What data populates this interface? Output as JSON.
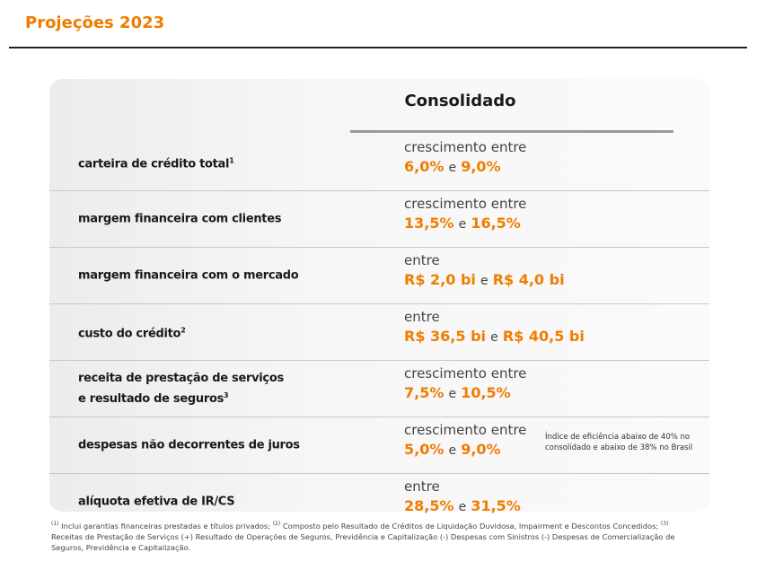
{
  "header": {
    "title": "Projeções 2023"
  },
  "table": {
    "column_header": "Consolidado",
    "rows": [
      {
        "label_lines": [
          "carteira de crédito total"
        ],
        "sup": "1",
        "prefix": "crescimento entre",
        "low": "6,0%",
        "connector": "e",
        "high": "9,0%"
      },
      {
        "label_lines": [
          "margem financeira com clientes"
        ],
        "prefix": "crescimento entre",
        "low": "13,5%",
        "connector": "e",
        "high": "16,5%"
      },
      {
        "label_lines": [
          "margem financeira com o mercado"
        ],
        "prefix": "entre",
        "low": "R$ 2,0 bi",
        "connector": "e",
        "high": "R$ 4,0 bi"
      },
      {
        "label_lines": [
          "custo do crédito"
        ],
        "sup": "2",
        "prefix": "entre",
        "low": "R$ 36,5 bi",
        "connector": "e",
        "high": "R$ 40,5 bi"
      },
      {
        "label_lines": [
          "receita de prestação de serviços",
          "e resultado de seguros"
        ],
        "sup": "3",
        "prefix": "crescimento entre",
        "low": "7,5%",
        "connector": "e",
        "high": "10,5%"
      },
      {
        "label_lines": [
          "despesas não decorrentes de juros"
        ],
        "prefix": "crescimento entre",
        "low": "5,0%",
        "connector": "e",
        "high": "9,0%",
        "note": "Índice de eficiência abaixo de 40% no consolidado e abaixo de 38% no Brasil"
      },
      {
        "label_lines": [
          "alíquota efetiva de IR/CS"
        ],
        "prefix": "entre",
        "low": "28,5%",
        "connector": "e",
        "high": "31,5%"
      }
    ]
  },
  "footnotes": [
    {
      "marker": "(1)",
      "text": "Inclui garantias financeiras prestadas e títulos privados;"
    },
    {
      "marker": "(2)",
      "text": "Composto pelo Resultado de Créditos de Liquidação Duvidosa, Impairment e Descontos Concedidos;"
    },
    {
      "marker": "(3)",
      "text": "Receitas de Prestação de Serviços (+) Resultado de Operações de Seguros, Previdência e Capitalização (-) Despesas com Sinistros (-) Despesas de Comercialização de Seguros, Previdência e Capitalização."
    }
  ]
}
